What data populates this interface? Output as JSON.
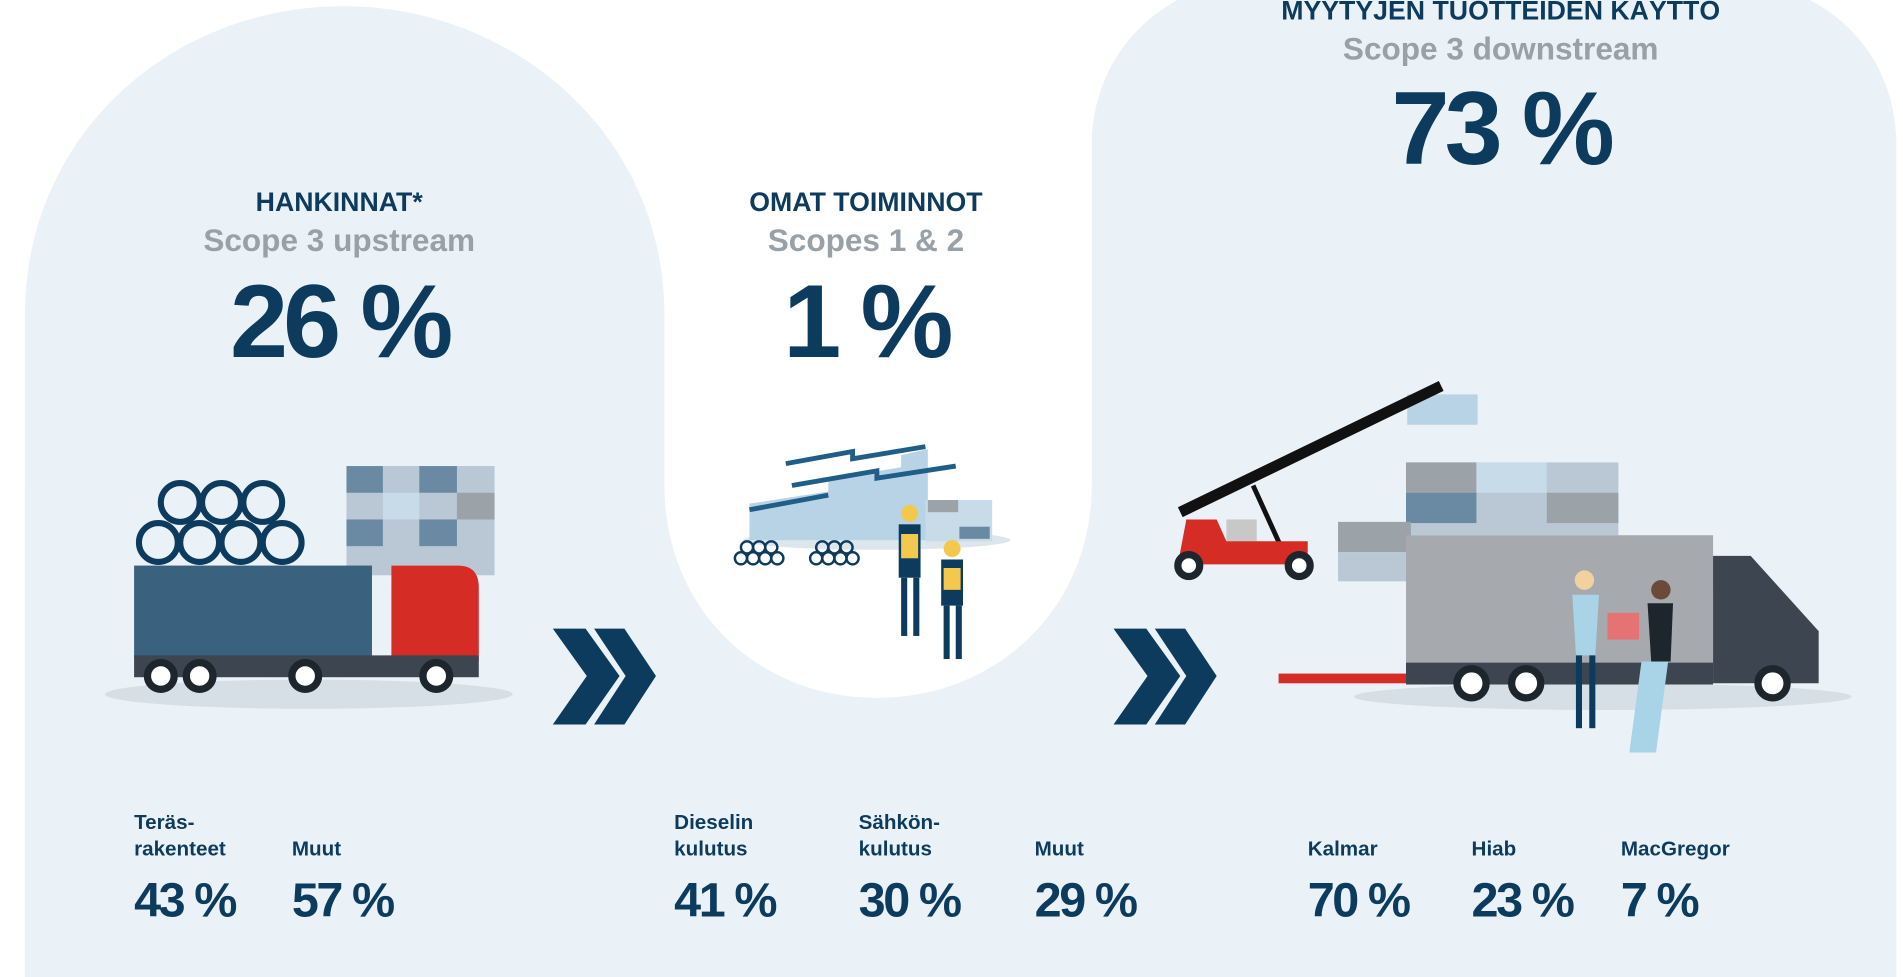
{
  "sections": [
    {
      "title": "HANKINNAT*",
      "subtitle": "Scope 3 upstream",
      "value": "26 %",
      "items": [
        {
          "label": [
            "Teräs-",
            "rakenteet"
          ],
          "value": "43 %"
        },
        {
          "label": [
            "Muut"
          ],
          "value": "57 %"
        }
      ]
    },
    {
      "title": "OMAT TOIMINNOT",
      "subtitle": "Scopes 1 & 2",
      "value": "1 %",
      "items": [
        {
          "label": [
            "Dieselin",
            "kulutus"
          ],
          "value": "41 %"
        },
        {
          "label": [
            "Sähkön-",
            "kulutus"
          ],
          "value": "30 %"
        },
        {
          "label": [
            "Muut"
          ],
          "value": "29 %"
        }
      ]
    },
    {
      "title": "MYYTYJEN TUOTTEIDEN KÄYTTÖ",
      "subtitle": "Scope 3 downstream",
      "value": "73 %",
      "items": [
        {
          "label": [
            "Kalmar"
          ],
          "value": "70 %"
        },
        {
          "label": [
            "Hiab"
          ],
          "value": "23 %"
        },
        {
          "label": [
            "MacGregor"
          ],
          "value": "7 %"
        }
      ]
    }
  ]
}
